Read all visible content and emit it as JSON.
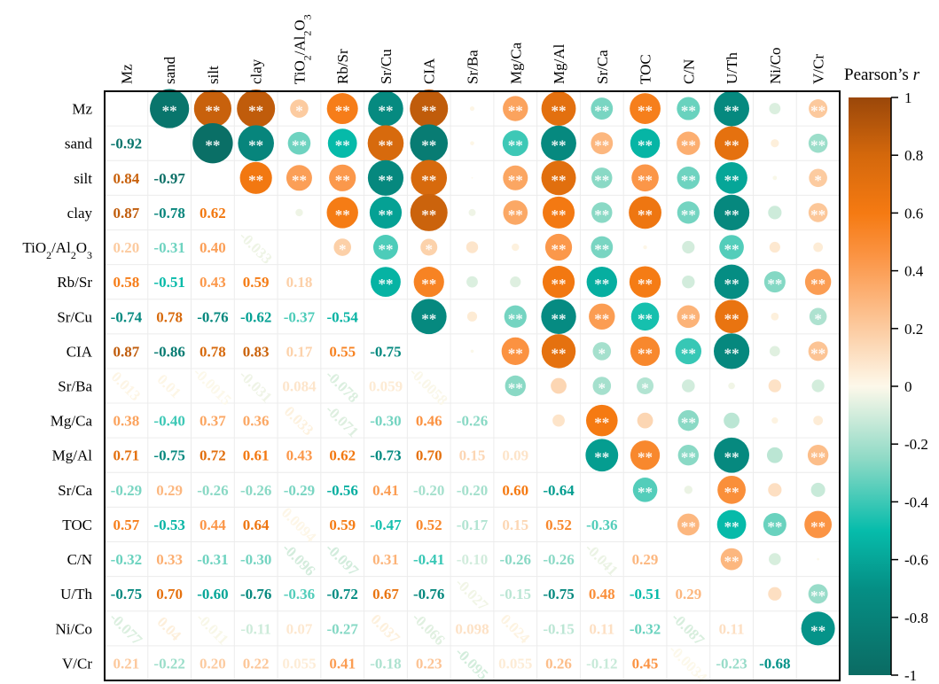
{
  "chart_data": {
    "type": "heatmap",
    "title": "",
    "variables": [
      "Mz",
      "sand",
      "silt",
      "clay",
      "TiO2/Al2O3",
      "Rb/Sr",
      "Sr/Cu",
      "CIA",
      "Sr/Ba",
      "Mg/Ca",
      "Mg/Al",
      "Sr/Ca",
      "TOC",
      "C/N",
      "U/Th",
      "Ni/Co",
      "V/Cr"
    ],
    "lower_triangle": [
      [],
      [
        -0.92
      ],
      [
        0.84,
        -0.97
      ],
      [
        0.87,
        -0.78,
        0.62
      ],
      [
        0.2,
        -0.31,
        0.4,
        -0.033
      ],
      [
        0.58,
        -0.51,
        0.43,
        0.59,
        0.18
      ],
      [
        -0.74,
        0.78,
        -0.76,
        -0.62,
        -0.37,
        -0.54
      ],
      [
        0.87,
        -0.86,
        0.78,
        0.83,
        0.17,
        0.55,
        -0.75
      ],
      [
        0.013,
        0.01,
        -0.0015,
        -0.031,
        0.084,
        -0.078,
        0.059,
        -0.0058
      ],
      [
        0.38,
        -0.4,
        0.37,
        0.36,
        0.033,
        -0.071,
        -0.3,
        0.46,
        -0.26
      ],
      [
        0.71,
        -0.75,
        0.72,
        0.61,
        0.43,
        0.62,
        -0.73,
        0.7,
        0.15,
        0.09
      ],
      [
        -0.29,
        0.29,
        -0.26,
        -0.26,
        -0.29,
        -0.56,
        0.41,
        -0.2,
        -0.2,
        0.6,
        -0.64
      ],
      [
        0.57,
        -0.53,
        0.44,
        0.64,
        0.0094,
        0.59,
        -0.47,
        0.52,
        -0.17,
        0.15,
        0.52,
        -0.36
      ],
      [
        -0.32,
        0.33,
        -0.31,
        -0.3,
        -0.096,
        -0.097,
        0.31,
        -0.41,
        -0.1,
        -0.26,
        -0.26,
        -0.041,
        0.29
      ],
      [
        -0.75,
        0.7,
        -0.6,
        -0.76,
        -0.36,
        -0.72,
        0.67,
        -0.76,
        -0.027,
        -0.15,
        -0.75,
        0.48,
        -0.51,
        0.29
      ],
      [
        -0.077,
        0.04,
        -0.011,
        -0.11,
        0.07,
        -0.27,
        0.037,
        -0.066,
        0.098,
        0.024,
        -0.15,
        0.11,
        -0.32,
        -0.087,
        0.11
      ],
      [
        0.21,
        -0.22,
        0.2,
        0.22,
        0.055,
        0.41,
        -0.18,
        0.23,
        -0.095,
        0.055,
        0.26,
        -0.12,
        0.45,
        -0.0034,
        -0.23,
        -0.68
      ]
    ],
    "upper_triangle": "circles sized by |r|, colored by r, with significance stars",
    "significance": {
      "double_star_min_abs_r": 0.205,
      "single_star_min_abs_r": 0.165,
      "double_label": "**",
      "single_label": "*"
    },
    "colorbar": {
      "label": "Pearson’s r",
      "range": [
        -1,
        1
      ],
      "ticks": [
        "1",
        "0.8",
        "0.6",
        "0.4",
        "0.2",
        "0",
        "-0.2",
        "-0.4",
        "-0.6",
        "-0.8",
        "-1"
      ],
      "tick_values": [
        1,
        0.8,
        0.6,
        0.4,
        0.2,
        0,
        -0.2,
        -0.4,
        -0.6,
        -0.8,
        -1
      ],
      "colors": [
        {
          "v": -1,
          "c": "#0b6b63"
        },
        {
          "v": -0.7,
          "c": "#058f85"
        },
        {
          "v": -0.5,
          "c": "#06bcab"
        },
        {
          "v": -0.25,
          "c": "#8fdac6"
        },
        {
          "v": 0,
          "c": "#fdf8ea"
        },
        {
          "v": 0.25,
          "c": "#fcc08e"
        },
        {
          "v": 0.45,
          "c": "#fb9444"
        },
        {
          "v": 0.6,
          "c": "#f57a12"
        },
        {
          "v": 0.8,
          "c": "#d4680c"
        },
        {
          "v": 1,
          "c": "#9a470a"
        }
      ]
    }
  }
}
